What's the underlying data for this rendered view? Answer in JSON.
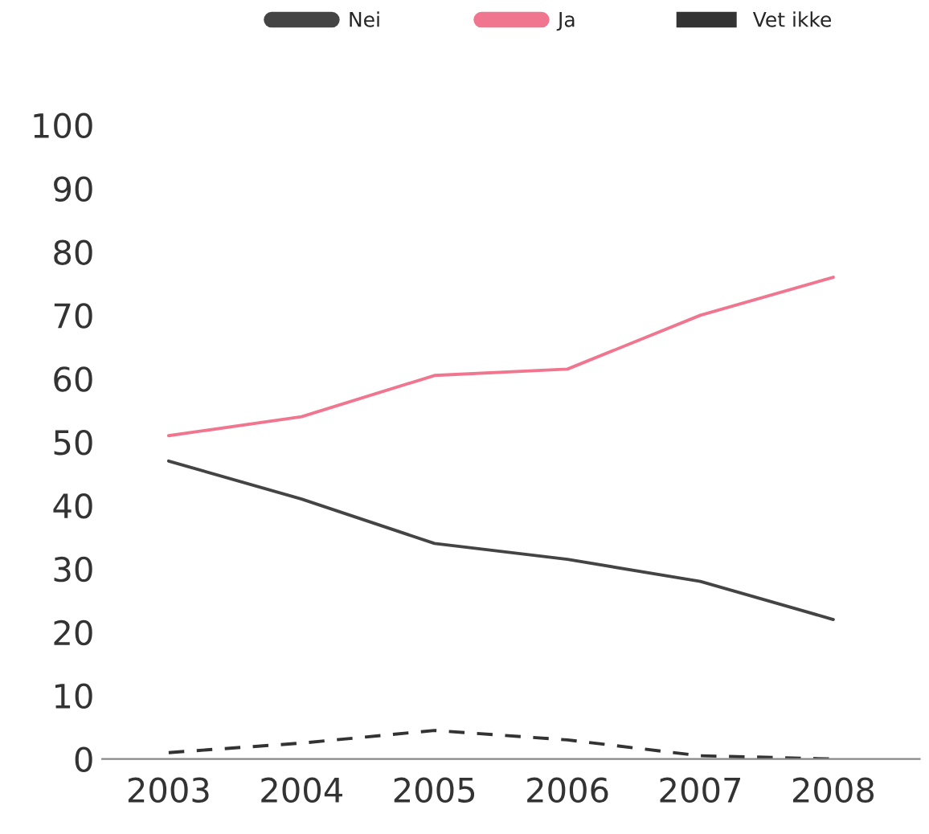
{
  "chart_data": {
    "type": "line",
    "categories": [
      "2003",
      "2004",
      "2005",
      "2006",
      "2007",
      "2008"
    ],
    "series": [
      {
        "name": "Nei",
        "color": "#444444",
        "line_style": "solid",
        "values": [
          47,
          41,
          34,
          31.5,
          28,
          22
        ]
      },
      {
        "name": "Ja",
        "color": "#f0758f",
        "line_style": "solid",
        "values": [
          51,
          54,
          60.5,
          61.5,
          70,
          76
        ]
      },
      {
        "name": "Vet ikke",
        "color": "#333333",
        "line_style": "dashed",
        "values": [
          1,
          2.5,
          4.5,
          3,
          0.5,
          0
        ]
      }
    ],
    "ylim": [
      0,
      100
    ],
    "yticks": [
      0,
      10,
      20,
      30,
      40,
      50,
      60,
      70,
      80,
      90,
      100
    ],
    "grid": false,
    "legend": "top",
    "marker": "none"
  }
}
